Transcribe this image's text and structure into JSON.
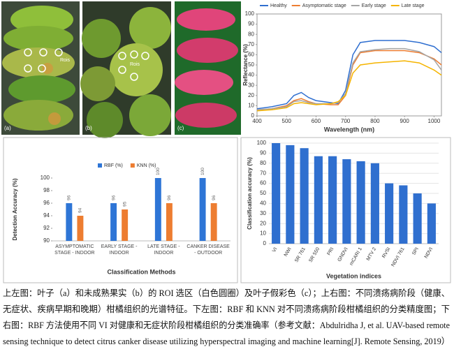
{
  "photos": {
    "labels": [
      "(a)",
      "(b)",
      "(c)"
    ],
    "roi_label": "Rois"
  },
  "chart_data": [
    {
      "type": "line",
      "x_label": "Wavelength (nm)",
      "y_label": "Reflectance (%)",
      "x": [
        400,
        450,
        500,
        525,
        550,
        575,
        600,
        650,
        675,
        700,
        725,
        750,
        800,
        850,
        900,
        950,
        1000,
        1025
      ],
      "series": [
        {
          "name": "Healthy",
          "color": "#2f6fd0",
          "values": [
            7,
            9,
            12,
            20,
            23,
            18,
            15,
            13,
            12,
            25,
            60,
            72,
            74,
            74,
            74,
            72,
            68,
            62
          ]
        },
        {
          "name": "Asymptomatic stage",
          "color": "#ed7d31",
          "values": [
            6,
            7,
            10,
            15,
            17,
            14,
            12,
            11,
            11,
            20,
            50,
            62,
            64,
            64,
            64,
            62,
            56,
            50
          ]
        },
        {
          "name": "Early stage",
          "color": "#a5a5a5",
          "values": [
            6,
            7,
            9,
            14,
            15,
            13,
            12,
            12,
            13,
            22,
            52,
            63,
            65,
            66,
            66,
            63,
            55,
            45
          ]
        },
        {
          "name": "Late stage",
          "color": "#f5b400",
          "values": [
            5,
            6,
            8,
            12,
            13,
            12,
            11,
            12,
            14,
            20,
            42,
            50,
            52,
            53,
            54,
            52,
            45,
            40
          ]
        }
      ],
      "xlim": [
        400,
        1025
      ],
      "xticks": [
        400,
        500,
        600,
        700,
        800,
        900,
        1000
      ],
      "ylim": [
        0,
        100
      ],
      "yticks": [
        0,
        10,
        20,
        30,
        40,
        50,
        60,
        70,
        80,
        90,
        100
      ]
    },
    {
      "type": "bar",
      "x_label": "Classification Methods",
      "y_label": "Detection Accuracy (%)",
      "categories": [
        "ASYMPTOMATIC STAGE - INDOOR",
        "EARLY STAGE - INDOOR",
        "LATE STAGE - INDOOR",
        "CANKER DISEASE - OUTDOOR"
      ],
      "series": [
        {
          "name": "RBF (%)",
          "color": "#2e75d6",
          "values": [
            96,
            96,
            100,
            100
          ]
        },
        {
          "name": "KNN (%)",
          "color": "#ed7d31",
          "values": [
            94,
            95,
            96,
            96
          ]
        }
      ],
      "ylim": [
        90,
        100
      ],
      "yticks": [
        90,
        92,
        94,
        96,
        98,
        100
      ],
      "grid": false
    },
    {
      "type": "bar",
      "x_label": "Vegetation indices",
      "y_label": "Classification accuracy (%)",
      "categories": [
        "VI",
        "NWI",
        "SR 761",
        "SR 550",
        "PRI",
        "GNDVI",
        "mCARI 1",
        "MTV 2",
        "RVSI",
        "NDVI 761",
        "SPI",
        "NDVI"
      ],
      "values": [
        100,
        98,
        95,
        87,
        87,
        84,
        82,
        80,
        60,
        58,
        50,
        40
      ],
      "color": "#2f6fcf",
      "ylim": [
        0,
        100
      ],
      "yticks": [
        0,
        10,
        20,
        30,
        40,
        50,
        60,
        70,
        80,
        90,
        100
      ]
    }
  ],
  "caption": [
    "上左图：叶子（a）和未成熟果实（b）的 ROI 选区（白色圆圈）及叶子假彩色（c）；上右图：不同溃疡病阶段（健康、",
    "无症状、疾病早期和晚期）柑橘组织的光谱特征。下左图：RBF 和 KNN 对不同溃疡病阶段柑橘组织的分类精度图；下",
    "右图：RBF 方法使用不同 VI 对健康和无症状阶段柑橘组织的分类准确率（参考文献：Abdulridha J, et al. UAV-based remote",
    "sensing technique to detect citrus canker disease utilizing hyperspectral imaging and machine learning[J]. Remote Sensing, 2019）"
  ]
}
